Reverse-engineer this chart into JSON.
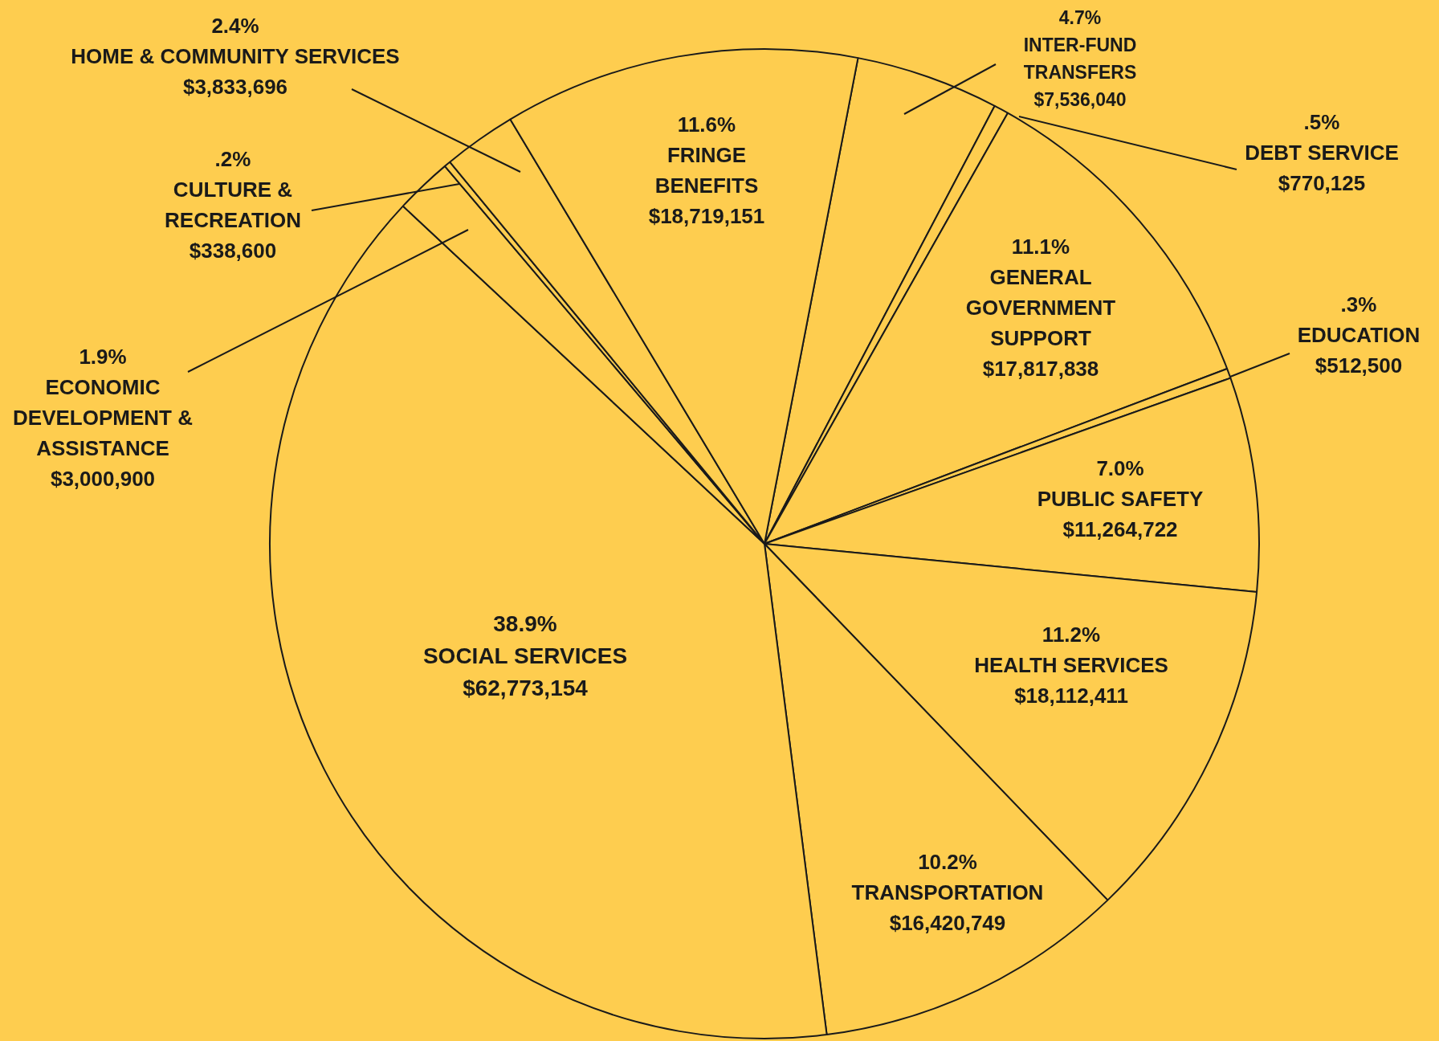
{
  "chart_data": {
    "type": "pie",
    "categories": [
      "INTER-FUND TRANSFERS",
      "DEBT SERVICE",
      "GENERAL GOVERNMENT SUPPORT",
      "EDUCATION",
      "PUBLIC SAFETY",
      "HEALTH SERVICES",
      "TRANSPORTATION",
      "SOCIAL SERVICES",
      "ECONOMIC DEVELOPMENT & ASSISTANCE",
      "CULTURE & RECREATION",
      "HOME & COMMUNITY SERVICES",
      "FRINGE BENEFITS"
    ],
    "values": [
      7536040,
      770125,
      17817838,
      512500,
      11264722,
      18112411,
      16420749,
      62773154,
      3000900,
      338600,
      3833696,
      18719151
    ],
    "colors": [
      "#fecd4f",
      "#fecd4f",
      "#fecd4f",
      "#fecd4f",
      "#fecd4f",
      "#fecd4f",
      "#fecd4f",
      "#fecd4f",
      "#fecd4f",
      "#fecd4f",
      "#fecd4f",
      "#fecd4f"
    ],
    "value_labels": [
      "$7,536,040",
      "$770,125",
      "$17,817,838",
      "$512,500",
      "$11,264,722",
      "$18,112,411",
      "$16,420,749",
      "$62,773,154",
      "$3,000,900",
      "$338,600",
      "$3,833,696",
      "$18,719,151"
    ],
    "annotations": [
      "4.7%",
      ".5%",
      "11.1%",
      ".3%",
      "7.0%",
      "11.2%",
      "10.2%",
      "38.9%",
      "1.9%",
      ".2%",
      "2.4%",
      "11.6%"
    ],
    "legend": false
  }
}
